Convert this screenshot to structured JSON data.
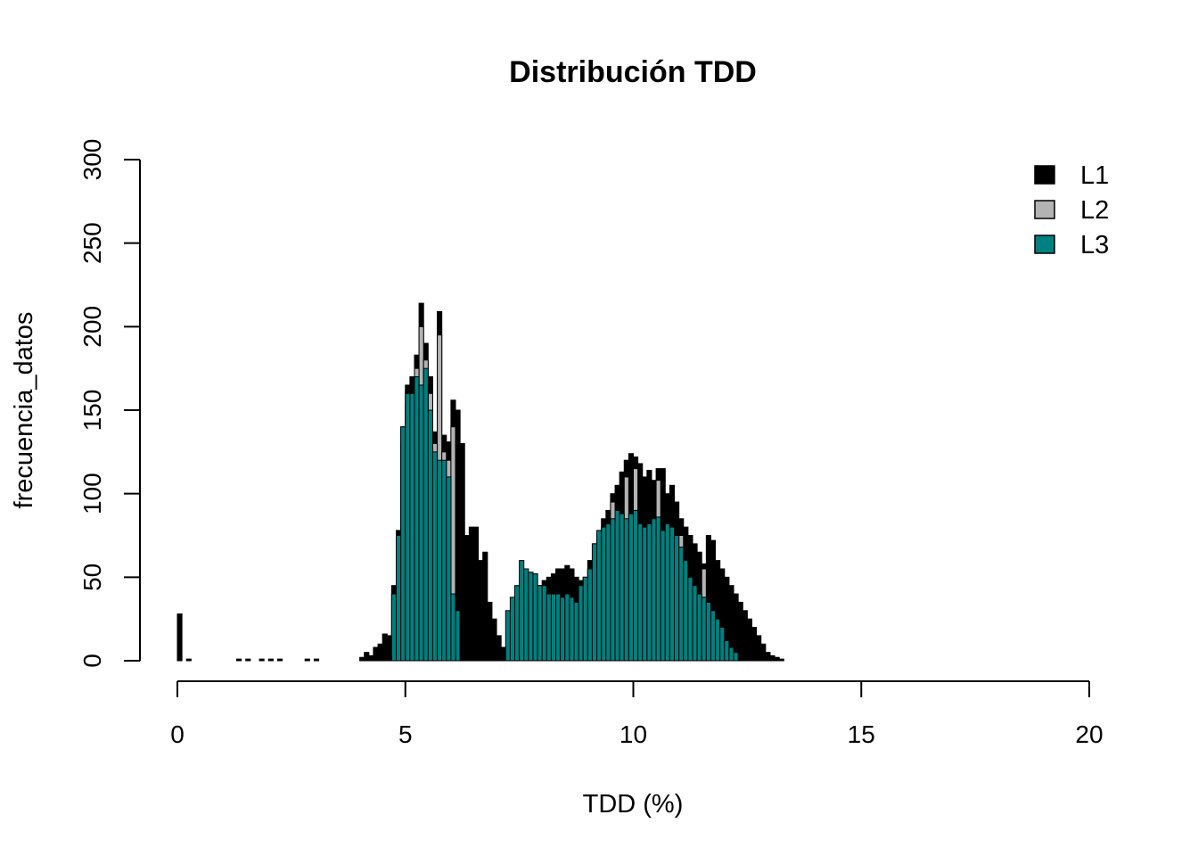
{
  "chart_data": {
    "type": "bar",
    "title": "Distribución TDD",
    "xlabel": "TDD (%)",
    "ylabel": "frecuencia_datos",
    "xlim": [
      0,
      20
    ],
    "ylim": [
      0,
      300
    ],
    "xticks": [
      "0",
      "5",
      "10",
      "15",
      "20"
    ],
    "yticks": [
      "0",
      "50",
      "100",
      "150",
      "200",
      "250",
      "300"
    ],
    "bin_width": 0.1,
    "grid": false,
    "legend": {
      "position": "top-right",
      "entries": [
        {
          "label": "L1",
          "color": "#000000"
        },
        {
          "label": "L2",
          "color": "#b3b3b3"
        },
        {
          "label": "L3",
          "color": "#008080"
        }
      ]
    },
    "series": [
      {
        "name": "L1",
        "color": "#000000",
        "points": [
          [
            0.0,
            28
          ],
          [
            0.2,
            1
          ],
          [
            1.3,
            1
          ],
          [
            1.5,
            1
          ],
          [
            1.8,
            1
          ],
          [
            2.0,
            1
          ],
          [
            2.2,
            1
          ],
          [
            2.8,
            1
          ],
          [
            3.0,
            1
          ],
          [
            4.0,
            2
          ],
          [
            4.1,
            5
          ],
          [
            4.2,
            3
          ],
          [
            4.3,
            8
          ],
          [
            4.4,
            10
          ],
          [
            4.5,
            16
          ],
          [
            4.6,
            15
          ],
          [
            4.7,
            45
          ],
          [
            4.8,
            78
          ],
          [
            4.9,
            140
          ],
          [
            5.0,
            165
          ],
          [
            5.1,
            170
          ],
          [
            5.2,
            183
          ],
          [
            5.3,
            214
          ],
          [
            5.4,
            190
          ],
          [
            5.5,
            170
          ],
          [
            5.6,
            137
          ],
          [
            5.7,
            209
          ],
          [
            5.8,
            135
          ],
          [
            5.9,
            131
          ],
          [
            6.0,
            156
          ],
          [
            6.1,
            150
          ],
          [
            6.2,
            130
          ],
          [
            6.3,
            75
          ],
          [
            6.4,
            80
          ],
          [
            6.5,
            80
          ],
          [
            6.6,
            60
          ],
          [
            6.7,
            65
          ],
          [
            6.8,
            35
          ],
          [
            6.9,
            25
          ],
          [
            7.0,
            15
          ],
          [
            7.1,
            8
          ],
          [
            7.2,
            5
          ],
          [
            7.3,
            20
          ],
          [
            7.4,
            25
          ],
          [
            7.5,
            30
          ],
          [
            7.6,
            35
          ],
          [
            7.7,
            40
          ],
          [
            7.8,
            40
          ],
          [
            7.9,
            45
          ],
          [
            8.0,
            48
          ],
          [
            8.1,
            50
          ],
          [
            8.2,
            52
          ],
          [
            8.3,
            55
          ],
          [
            8.4,
            55
          ],
          [
            8.5,
            57
          ],
          [
            8.6,
            55
          ],
          [
            8.7,
            50
          ],
          [
            8.8,
            48
          ],
          [
            8.9,
            50
          ],
          [
            9.0,
            60
          ],
          [
            9.1,
            70
          ],
          [
            9.2,
            75
          ],
          [
            9.3,
            85
          ],
          [
            9.4,
            90
          ],
          [
            9.5,
            100
          ],
          [
            9.6,
            105
          ],
          [
            9.7,
            113
          ],
          [
            9.8,
            120
          ],
          [
            9.9,
            124
          ],
          [
            10.0,
            122
          ],
          [
            10.1,
            118
          ],
          [
            10.2,
            110
          ],
          [
            10.3,
            114
          ],
          [
            10.4,
            108
          ],
          [
            10.5,
            115
          ],
          [
            10.6,
            115
          ],
          [
            10.7,
            100
          ],
          [
            10.8,
            105
          ],
          [
            10.9,
            95
          ],
          [
            11.0,
            85
          ],
          [
            11.1,
            80
          ],
          [
            11.2,
            75
          ],
          [
            11.3,
            70
          ],
          [
            11.4,
            65
          ],
          [
            11.5,
            58
          ],
          [
            11.6,
            75
          ],
          [
            11.7,
            72
          ],
          [
            11.8,
            60
          ],
          [
            11.9,
            55
          ],
          [
            12.0,
            50
          ],
          [
            12.1,
            45
          ],
          [
            12.2,
            40
          ],
          [
            12.3,
            35
          ],
          [
            12.4,
            30
          ],
          [
            12.5,
            25
          ],
          [
            12.6,
            20
          ],
          [
            12.7,
            15
          ],
          [
            12.8,
            10
          ],
          [
            12.9,
            5
          ],
          [
            13.0,
            3
          ],
          [
            13.1,
            2
          ],
          [
            13.2,
            1
          ]
        ]
      },
      {
        "name": "L2",
        "color": "#b3b3b3",
        "points": [
          [
            4.7,
            40
          ],
          [
            4.8,
            70
          ],
          [
            4.9,
            130
          ],
          [
            5.0,
            155
          ],
          [
            5.1,
            160
          ],
          [
            5.2,
            175
          ],
          [
            5.3,
            200
          ],
          [
            5.4,
            180
          ],
          [
            5.5,
            160
          ],
          [
            5.6,
            130
          ],
          [
            5.7,
            195
          ],
          [
            5.8,
            125
          ],
          [
            5.9,
            120
          ],
          [
            6.0,
            140
          ],
          [
            7.3,
            25
          ],
          [
            7.4,
            30
          ],
          [
            7.5,
            35
          ],
          [
            7.6,
            45
          ],
          [
            7.7,
            50
          ],
          [
            7.8,
            52
          ],
          [
            9.0,
            55
          ],
          [
            9.5,
            95
          ],
          [
            9.8,
            110
          ],
          [
            10.0,
            115
          ],
          [
            10.5,
            108
          ],
          [
            11.0,
            75
          ],
          [
            11.5,
            55
          ]
        ]
      },
      {
        "name": "L3",
        "color": "#008080",
        "points": [
          [
            4.7,
            40
          ],
          [
            4.8,
            75
          ],
          [
            4.9,
            140
          ],
          [
            5.0,
            160
          ],
          [
            5.1,
            160
          ],
          [
            5.2,
            170
          ],
          [
            5.3,
            165
          ],
          [
            5.4,
            175
          ],
          [
            5.5,
            150
          ],
          [
            5.6,
            125
          ],
          [
            5.7,
            120
          ],
          [
            5.8,
            120
          ],
          [
            5.9,
            110
          ],
          [
            6.0,
            40
          ],
          [
            6.1,
            30
          ],
          [
            7.2,
            30
          ],
          [
            7.3,
            38
          ],
          [
            7.4,
            45
          ],
          [
            7.5,
            60
          ],
          [
            7.6,
            55
          ],
          [
            7.7,
            53
          ],
          [
            7.8,
            52
          ],
          [
            7.9,
            45
          ],
          [
            8.0,
            45
          ],
          [
            8.1,
            40
          ],
          [
            8.2,
            40
          ],
          [
            8.3,
            40
          ],
          [
            8.4,
            38
          ],
          [
            8.5,
            40
          ],
          [
            8.6,
            38
          ],
          [
            8.7,
            35
          ],
          [
            8.8,
            45
          ],
          [
            8.9,
            50
          ],
          [
            9.0,
            55
          ],
          [
            9.1,
            70
          ],
          [
            9.2,
            78
          ],
          [
            9.3,
            80
          ],
          [
            9.4,
            82
          ],
          [
            9.5,
            85
          ],
          [
            9.6,
            90
          ],
          [
            9.7,
            88
          ],
          [
            9.8,
            85
          ],
          [
            9.9,
            88
          ],
          [
            10.0,
            90
          ],
          [
            10.1,
            82
          ],
          [
            10.2,
            80
          ],
          [
            10.3,
            82
          ],
          [
            10.4,
            85
          ],
          [
            10.5,
            86
          ],
          [
            10.6,
            78
          ],
          [
            10.7,
            82
          ],
          [
            10.8,
            80
          ],
          [
            10.9,
            75
          ],
          [
            11.0,
            68
          ],
          [
            11.1,
            60
          ],
          [
            11.2,
            50
          ],
          [
            11.3,
            45
          ],
          [
            11.4,
            40
          ],
          [
            11.5,
            38
          ],
          [
            11.6,
            35
          ],
          [
            11.7,
            30
          ],
          [
            11.8,
            25
          ],
          [
            11.9,
            20
          ],
          [
            12.0,
            12
          ],
          [
            12.1,
            8
          ],
          [
            12.2,
            5
          ]
        ]
      }
    ]
  }
}
